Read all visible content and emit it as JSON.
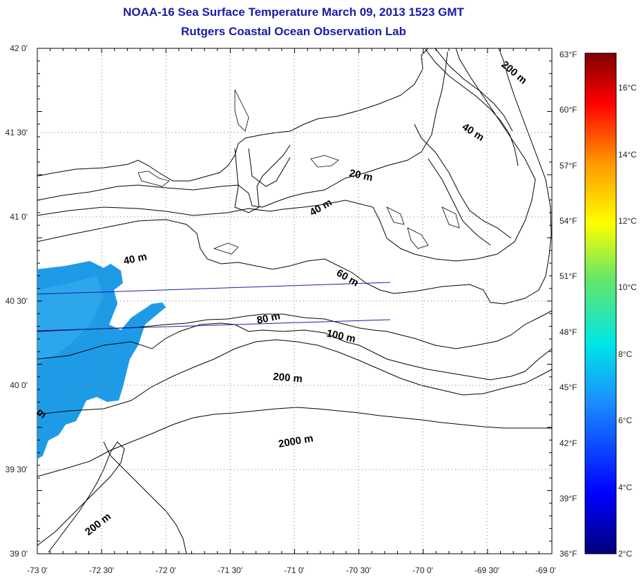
{
  "title": {
    "line1": "NOAA-16 Sea Surface Temperature March 09, 2013 1523 GMT",
    "line2": "Rutgers Coastal Ocean Observation Lab"
  },
  "axes": {
    "lat_labels": [
      "42 0'",
      "41 30'",
      "41 0'",
      "40 30'",
      "40 0'",
      "39 30'",
      "39 0'"
    ],
    "lon_labels": [
      "-73 0'",
      "-72 30'",
      "-72 0'",
      "-71 30'",
      "-71 0'",
      "-70 30'",
      "-70 0'",
      "-69 30'",
      "-69 0'"
    ],
    "fahrenheit_labels": [
      "63°F",
      "60°F",
      "57°F",
      "54°F",
      "51°F",
      "48°F",
      "45°F",
      "42°F",
      "39°F",
      "36°F"
    ]
  },
  "colorbar": {
    "celsius_labels": [
      "16°C",
      "14°C",
      "12°C",
      "10°C",
      "8°C",
      "6°C",
      "4°C",
      "2°C"
    ],
    "min_c": 2,
    "max_c": 17.2
  },
  "contour_labels": [
    "200 m",
    "40 m",
    "20 m",
    "40 m",
    "40 m",
    "60 m",
    "80 m",
    "100 m",
    "200 m",
    "2000 m",
    "200 m",
    "m"
  ],
  "colors": {
    "title": "#1a1aa6",
    "sst_patch": "#1e9be6",
    "contour": "#000000",
    "track": "#1a1aa6"
  }
}
